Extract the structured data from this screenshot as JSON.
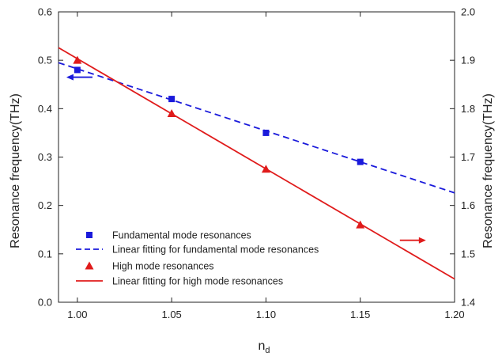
{
  "chart_data": {
    "type": "scatter",
    "xlabel": "n",
    "xlabel_sub": "d",
    "ylabel_left": "Resonance frequency(THz)",
    "ylabel_right": "Resonance frequency(THz)",
    "xlim": [
      0.99,
      1.2
    ],
    "ylim_left": [
      0.0,
      0.6
    ],
    "ylim_right": [
      1.4,
      2.0
    ],
    "x_ticks": [
      1.0,
      1.05,
      1.1,
      1.15,
      1.2
    ],
    "x_tick_labels": [
      "1.00",
      "1.05",
      "1.10",
      "1.15",
      "1.20"
    ],
    "y_left_ticks": [
      0.0,
      0.1,
      0.2,
      0.3,
      0.4,
      0.5,
      0.6
    ],
    "y_left_tick_labels": [
      "0.0",
      "0.1",
      "0.2",
      "0.3",
      "0.4",
      "0.5",
      "0.6"
    ],
    "y_right_ticks": [
      1.4,
      1.5,
      1.6,
      1.7,
      1.8,
      1.9,
      2.0
    ],
    "y_right_tick_labels": [
      "1.4",
      "1.5",
      "1.6",
      "1.7",
      "1.8",
      "1.9",
      "2.0"
    ],
    "grid": false,
    "legend_position": "bottom-left",
    "series": [
      {
        "name": "Fundamental mode resonances",
        "kind": "marker",
        "marker": "square",
        "axis": "left",
        "color": "#1a1adb",
        "x": [
          1.0,
          1.05,
          1.1,
          1.15
        ],
        "y": [
          0.48,
          0.42,
          0.35,
          0.29
        ]
      },
      {
        "name": "Linear fitting for fundamental mode resonances",
        "kind": "line",
        "dash": "dashed",
        "axis": "left",
        "color": "#1a1adb",
        "x": [
          0.99,
          1.2
        ],
        "y": [
          0.495,
          0.226
        ]
      },
      {
        "name": "High mode resonances",
        "kind": "marker",
        "marker": "triangle",
        "axis": "right",
        "color": "#e01b1b",
        "x": [
          1.0,
          1.05,
          1.1,
          1.15
        ],
        "y": [
          1.9,
          1.79,
          1.675,
          1.56
        ]
      },
      {
        "name": "Linear fitting for high mode resonances",
        "kind": "line",
        "dash": "solid",
        "axis": "right",
        "color": "#e01b1b",
        "x": [
          0.99,
          1.2
        ],
        "y": [
          1.926,
          1.448
        ]
      }
    ],
    "annotations": [
      {
        "type": "arrow",
        "direction": "left",
        "color": "#1a1adb",
        "points_to": "left axis",
        "x_from": 1.008,
        "x_to": 0.995,
        "y": 0.465,
        "axis": "left"
      },
      {
        "type": "arrow",
        "direction": "right",
        "color": "#e01b1b",
        "points_to": "right axis",
        "x_from": 1.171,
        "x_to": 1.184,
        "y": 1.528,
        "axis": "right"
      }
    ]
  }
}
